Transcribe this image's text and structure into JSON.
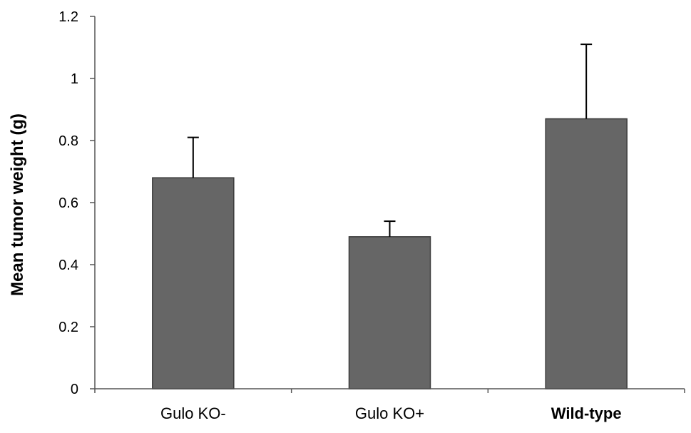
{
  "chart_data": {
    "type": "bar",
    "title": "",
    "xlabel": "",
    "ylabel": "Mean tumor weight (g)",
    "categories": [
      "Gulo KO-",
      "Gulo KO+",
      "Wild-type"
    ],
    "values": [
      0.68,
      0.49,
      0.87
    ],
    "error_upper": [
      0.81,
      0.54,
      1.11
    ],
    "ylim": [
      0,
      1.2
    ],
    "yticks": [
      "0",
      "0.2",
      "0.4",
      "0.6",
      "0.8",
      "1",
      "1.2"
    ],
    "grid": false,
    "legend": "none",
    "colors": {
      "bar": "#666666",
      "bar_edge": "#3a3a3a",
      "axis": "#555555"
    }
  }
}
